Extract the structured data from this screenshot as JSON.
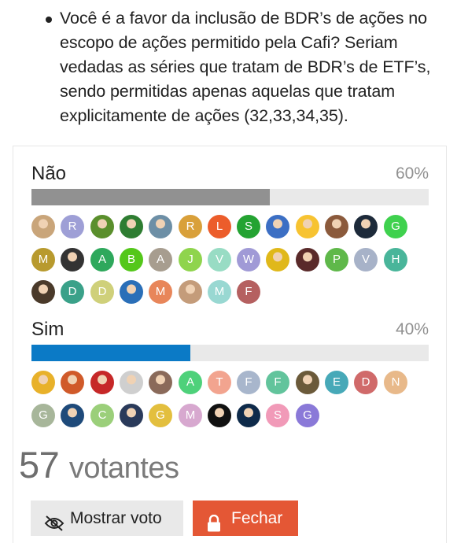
{
  "question": {
    "lines": [
      "Você é a favor da inclusão de BDR’s de ações no",
      "escopo de ações permitido pela Cafi? Seriam",
      "vedadas as séries que tratam de BDR’s de ETF’s,",
      "sendo permitidas apenas aquelas que tratam",
      "explicitamente de ações (32,33,34,35)."
    ]
  },
  "poll": {
    "options": [
      {
        "label": "Não",
        "percent_text": "60%",
        "percent": 60,
        "bar_color": "#919191",
        "voters": [
          {
            "letter": "",
            "color": "#c9a57a",
            "photo": true
          },
          {
            "letter": "R",
            "color": "#9e9fd6",
            "photo": false
          },
          {
            "letter": "",
            "color": "#5a8f2c",
            "photo": true
          },
          {
            "letter": "",
            "color": "#2e7d32",
            "photo": true
          },
          {
            "letter": "",
            "color": "#6d8fa6",
            "photo": true
          },
          {
            "letter": "R",
            "color": "#d9a03a",
            "photo": false
          },
          {
            "letter": "L",
            "color": "#ec5d2b",
            "photo": false
          },
          {
            "letter": "S",
            "color": "#24a332",
            "photo": false
          },
          {
            "letter": "",
            "color": "#3c6fc4",
            "photo": true
          },
          {
            "letter": "",
            "color": "#f7c331",
            "photo": true
          },
          {
            "letter": "",
            "color": "#8b5a3c",
            "photo": true
          },
          {
            "letter": "",
            "color": "#1d2a3a",
            "photo": true
          },
          {
            "letter": "G",
            "color": "#3fd14e",
            "photo": false
          },
          {
            "letter": "M",
            "color": "#b89a2e",
            "photo": false
          },
          {
            "letter": "",
            "color": "#333333",
            "photo": true
          },
          {
            "letter": "A",
            "color": "#2ea85c",
            "photo": false
          },
          {
            "letter": "B",
            "color": "#54c71a",
            "photo": false
          },
          {
            "letter": "A",
            "color": "#a79d8f",
            "photo": false
          },
          {
            "letter": "J",
            "color": "#8fd44d",
            "photo": false
          },
          {
            "letter": "V",
            "color": "#98dcc4",
            "photo": false
          },
          {
            "letter": "W",
            "color": "#a09ad6",
            "photo": false
          },
          {
            "letter": "",
            "color": "#e0b81a",
            "photo": true
          },
          {
            "letter": "",
            "color": "#5a2a2a",
            "photo": true
          },
          {
            "letter": "P",
            "color": "#5fb84a",
            "photo": false
          },
          {
            "letter": "V",
            "color": "#a7b2c8",
            "photo": false
          },
          {
            "letter": "H",
            "color": "#49b59a",
            "photo": false
          },
          {
            "letter": "",
            "color": "#4a3a2a",
            "photo": true
          },
          {
            "letter": "D",
            "color": "#3aa189",
            "photo": false
          },
          {
            "letter": "D",
            "color": "#cfd07a",
            "photo": false
          },
          {
            "letter": "",
            "color": "#2a6fb8",
            "photo": true
          },
          {
            "letter": "M",
            "color": "#e8865a",
            "photo": false
          },
          {
            "letter": "",
            "color": "#c49c7a",
            "photo": true
          },
          {
            "letter": "M",
            "color": "#99d8d2",
            "photo": false
          },
          {
            "letter": "F",
            "color": "#b56060",
            "photo": false
          }
        ]
      },
      {
        "label": "Sim",
        "percent_text": "40%",
        "percent": 40,
        "bar_color": "#0b7ac6",
        "voters": [
          {
            "letter": "",
            "color": "#e8b12a",
            "photo": true
          },
          {
            "letter": "",
            "color": "#d05a2a",
            "photo": true
          },
          {
            "letter": "",
            "color": "#c62828",
            "photo": true
          },
          {
            "letter": "",
            "color": "#cfcfcf",
            "photo": true
          },
          {
            "letter": "",
            "color": "#8a6a5a",
            "photo": true
          },
          {
            "letter": "A",
            "color": "#4ed17a",
            "photo": false
          },
          {
            "letter": "T",
            "color": "#f2a48f",
            "photo": false
          },
          {
            "letter": "F",
            "color": "#a8b6cc",
            "photo": false
          },
          {
            "letter": "F",
            "color": "#62c49c",
            "photo": false
          },
          {
            "letter": "",
            "color": "#6b5a3a",
            "photo": true
          },
          {
            "letter": "E",
            "color": "#47a9b8",
            "photo": false
          },
          {
            "letter": "D",
            "color": "#d06a6a",
            "photo": false
          },
          {
            "letter": "N",
            "color": "#e8b98a",
            "photo": false
          },
          {
            "letter": "G",
            "color": "#a7b69a",
            "photo": false
          },
          {
            "letter": "",
            "color": "#1e4a7a",
            "photo": true
          },
          {
            "letter": "C",
            "color": "#9bcf7a",
            "photo": false
          },
          {
            "letter": "",
            "color": "#2a3a5a",
            "photo": true
          },
          {
            "letter": "G",
            "color": "#e3bf3e",
            "photo": false
          },
          {
            "letter": "M",
            "color": "#d7a8cf",
            "photo": false
          },
          {
            "letter": "",
            "color": "#111111",
            "photo": true
          },
          {
            "letter": "",
            "color": "#0e2a4a",
            "photo": true
          },
          {
            "letter": "S",
            "color": "#f19ab8",
            "photo": false
          },
          {
            "letter": "G",
            "color": "#8a79d8",
            "photo": false
          }
        ]
      }
    ],
    "voters_count": "57",
    "voters_label": "votantes"
  },
  "buttons": {
    "show_vote": "Mostrar voto",
    "close": "Fechar"
  },
  "icons": {
    "show_vote": "eye-slash-icon",
    "close": "lock-icon"
  },
  "colors": {
    "accent_blue": "#0b7ac6",
    "close_button": "#e45735",
    "bar_track": "#e9e9e9"
  }
}
